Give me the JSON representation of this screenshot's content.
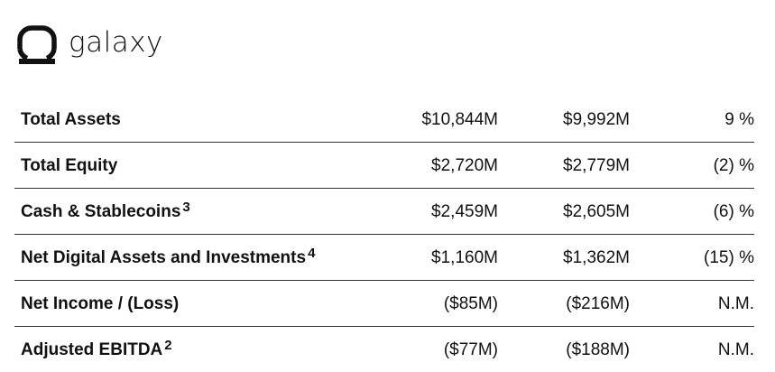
{
  "brand": {
    "name": "galaxy",
    "logo_icon": "galaxy-logo-icon"
  },
  "table": {
    "rows": [
      {
        "label": "Total Assets",
        "footnote": "",
        "current": "$10,844M",
        "prior": "$9,992M",
        "change": "9 %"
      },
      {
        "label": "Total Equity",
        "footnote": "",
        "current": "$2,720M",
        "prior": "$2,779M",
        "change": "(2) %"
      },
      {
        "label": "Cash & Stablecoins",
        "footnote": "3",
        "current": "$2,459M",
        "prior": "$2,605M",
        "change": "(6) %"
      },
      {
        "label": "Net Digital Assets and Investments",
        "footnote": "4",
        "current": "$1,160M",
        "prior": "$1,362M",
        "change": "(15) %"
      },
      {
        "label": "Net Income / (Loss)",
        "footnote": "",
        "current": "($85M)",
        "prior": "($216M)",
        "change": "N.M."
      },
      {
        "label": "Adjusted EBITDA",
        "footnote": "2",
        "current": "($77M)",
        "prior": "($188M)",
        "change": "N.M."
      }
    ]
  }
}
